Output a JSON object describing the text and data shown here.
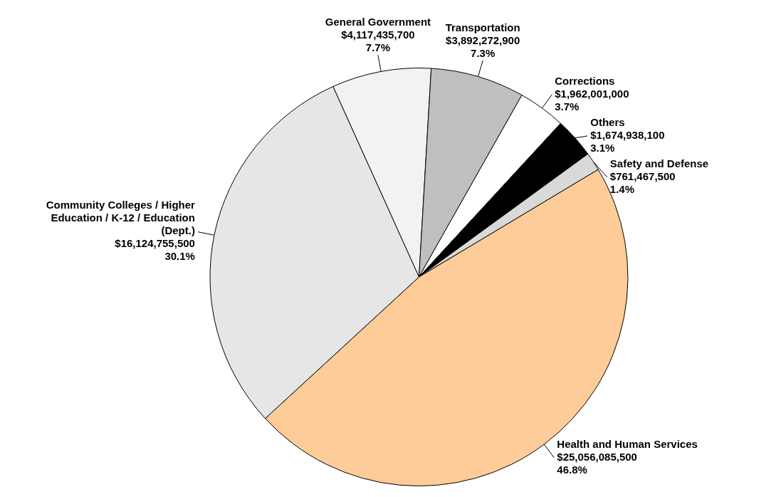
{
  "chart_data": {
    "type": "pie",
    "categories": [
      "General Government",
      "Transportation",
      "Corrections",
      "Others",
      "Safety and Defense",
      "Health and Human Services",
      "Community Colleges / Higher Education / K-12 / Education (Dept.)"
    ],
    "values": [
      4117435700,
      3892272900,
      1962001000,
      1674938100,
      761467500,
      25056085500,
      16124755500
    ],
    "value_labels": [
      "$4,117,435,700\n7.7%",
      "$3,892,272,900\n7.3%",
      "$1,962,001,000\n3.7%",
      "$1,674,938,100\n3.1%",
      "$761,467,500\n1.4%",
      "$25,056,085,500\n46.8%",
      "$16,124,755,500\n30.1%"
    ],
    "colors": [
      "#f2f2f2",
      "#bfbfbf",
      "#ffffff",
      "#000000",
      "#d9d9d9",
      "#fecc99",
      "#e6e6e6"
    ],
    "legend": false
  }
}
